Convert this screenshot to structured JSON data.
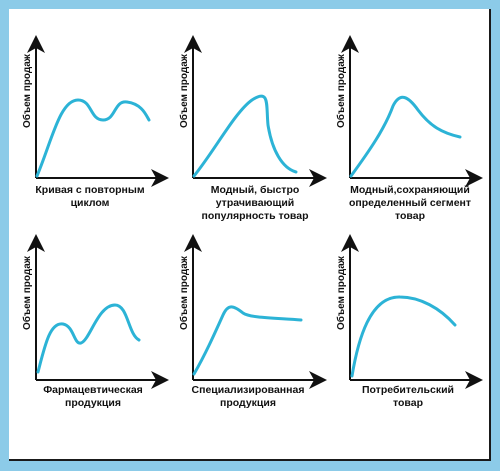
{
  "y_axis_label": "Объем продаж",
  "curve_color": "#2cb3d6",
  "panels": [
    {
      "id": "repeat-cycle",
      "caption": [
        "Кривая с повторным",
        "циклом"
      ]
    },
    {
      "id": "fad",
      "caption": [
        "Модный, быстро",
        "утрачивающий",
        "популярность товар"
      ]
    },
    {
      "id": "fashion-segment",
      "caption": [
        "Модный,сохраняющий",
        "определенный сегмент",
        "товар"
      ]
    },
    {
      "id": "pharma",
      "caption": [
        "Фармацевтическая",
        "продукция"
      ]
    },
    {
      "id": "specialized",
      "caption": [
        "Специализированная",
        "продукция"
      ]
    },
    {
      "id": "consumer",
      "caption": [
        "Потребительский",
        "товар"
      ]
    }
  ]
}
